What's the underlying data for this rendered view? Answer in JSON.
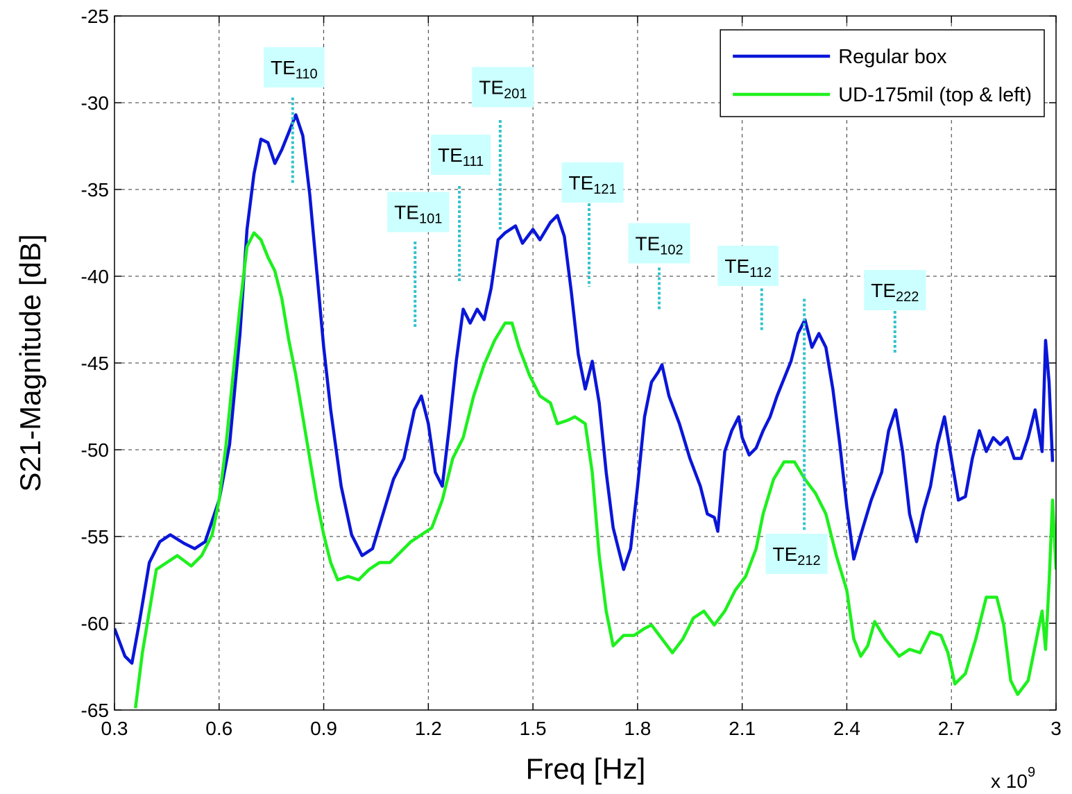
{
  "chart_data": {
    "type": "line",
    "xlabel": "Freq [Hz]",
    "ylabel": "S21-Magnitude [dB]",
    "x_multiplier": {
      "text": "x 10",
      "exponent": "9"
    },
    "xlim": [
      0.3,
      3
    ],
    "ylim": [
      -65,
      -25
    ],
    "xticks": [
      0.3,
      0.6,
      0.9,
      1.2,
      1.5,
      1.8,
      2.1,
      2.4,
      2.7,
      3
    ],
    "yticks": [
      -65,
      -60,
      -55,
      -50,
      -45,
      -40,
      -35,
      -30,
      -25
    ],
    "grid": true,
    "legend": "upper right",
    "series": [
      {
        "name": "Regular box",
        "color": "#0a16d8",
        "x": [
          0.3,
          0.33,
          0.35,
          0.37,
          0.4,
          0.43,
          0.46,
          0.5,
          0.53,
          0.56,
          0.6,
          0.63,
          0.66,
          0.68,
          0.7,
          0.72,
          0.74,
          0.76,
          0.78,
          0.8,
          0.82,
          0.84,
          0.86,
          0.88,
          0.9,
          0.92,
          0.95,
          0.98,
          1.01,
          1.04,
          1.07,
          1.1,
          1.13,
          1.16,
          1.18,
          1.2,
          1.22,
          1.24,
          1.26,
          1.28,
          1.3,
          1.32,
          1.34,
          1.36,
          1.38,
          1.4,
          1.42,
          1.45,
          1.47,
          1.5,
          1.52,
          1.55,
          1.57,
          1.59,
          1.61,
          1.63,
          1.65,
          1.67,
          1.69,
          1.71,
          1.73,
          1.76,
          1.78,
          1.8,
          1.82,
          1.84,
          1.86,
          1.87,
          1.89,
          1.92,
          1.95,
          1.98,
          2.0,
          2.02,
          2.03,
          2.05,
          2.07,
          2.09,
          2.1,
          2.12,
          2.14,
          2.16,
          2.18,
          2.2,
          2.22,
          2.24,
          2.26,
          2.28,
          2.3,
          2.32,
          2.34,
          2.36,
          2.38,
          2.4,
          2.42,
          2.44,
          2.47,
          2.5,
          2.52,
          2.54,
          2.56,
          2.58,
          2.6,
          2.62,
          2.64,
          2.66,
          2.68,
          2.7,
          2.72,
          2.74,
          2.76,
          2.78,
          2.8,
          2.82,
          2.84,
          2.86,
          2.88,
          2.9,
          2.92,
          2.94,
          2.96,
          2.97,
          2.98,
          2.99
        ],
        "values": [
          -60.3,
          -61.9,
          -62.3,
          -60.1,
          -56.5,
          -55.3,
          -54.9,
          -55.4,
          -55.7,
          -55.3,
          -52.9,
          -49.7,
          -43.3,
          -37.3,
          -34.1,
          -32.1,
          -32.3,
          -33.5,
          -32.7,
          -31.7,
          -30.7,
          -31.9,
          -35.3,
          -39.7,
          -44.1,
          -47.7,
          -52.1,
          -54.9,
          -56.1,
          -55.7,
          -53.7,
          -51.7,
          -50.5,
          -47.7,
          -46.9,
          -48.5,
          -51.3,
          -52.1,
          -48.7,
          -44.9,
          -41.9,
          -42.7,
          -41.9,
          -42.5,
          -40.7,
          -37.9,
          -37.5,
          -37.1,
          -38.1,
          -37.3,
          -37.9,
          -36.9,
          -36.5,
          -37.7,
          -40.9,
          -44.5,
          -46.5,
          -44.9,
          -47.3,
          -51.3,
          -54.5,
          -56.9,
          -55.7,
          -52.1,
          -48.1,
          -46.1,
          -45.5,
          -45.1,
          -46.9,
          -48.5,
          -50.5,
          -52.1,
          -53.7,
          -53.9,
          -54.7,
          -50.1,
          -48.9,
          -48.1,
          -49.3,
          -50.3,
          -49.9,
          -48.9,
          -48.1,
          -46.9,
          -45.9,
          -44.9,
          -43.3,
          -42.5,
          -44.1,
          -43.3,
          -44.1,
          -46.5,
          -49.7,
          -53.3,
          -56.3,
          -54.9,
          -52.9,
          -51.3,
          -48.9,
          -47.7,
          -50.1,
          -53.7,
          -55.3,
          -53.5,
          -52.1,
          -49.7,
          -48.1,
          -50.5,
          -52.9,
          -52.7,
          -50.5,
          -48.9,
          -50.1,
          -49.3,
          -49.7,
          -49.3,
          -50.5,
          -50.5,
          -49.3,
          -47.7,
          -50.1,
          -43.7,
          -46.1,
          -50.7
        ]
      },
      {
        "name": "UD-175mil (top & left)",
        "color": "#1ef01e",
        "x": [
          0.36,
          0.38,
          0.4,
          0.42,
          0.45,
          0.48,
          0.52,
          0.55,
          0.58,
          0.6,
          0.62,
          0.64,
          0.66,
          0.68,
          0.7,
          0.72,
          0.74,
          0.76,
          0.78,
          0.8,
          0.82,
          0.84,
          0.86,
          0.88,
          0.9,
          0.92,
          0.94,
          0.97,
          1.0,
          1.03,
          1.06,
          1.09,
          1.12,
          1.15,
          1.18,
          1.21,
          1.24,
          1.27,
          1.3,
          1.33,
          1.36,
          1.39,
          1.42,
          1.44,
          1.46,
          1.49,
          1.52,
          1.55,
          1.57,
          1.6,
          1.62,
          1.65,
          1.67,
          1.69,
          1.71,
          1.73,
          1.76,
          1.79,
          1.82,
          1.84,
          1.87,
          1.9,
          1.93,
          1.96,
          1.99,
          2.02,
          2.05,
          2.08,
          2.11,
          2.14,
          2.16,
          2.19,
          2.22,
          2.25,
          2.28,
          2.31,
          2.34,
          2.37,
          2.4,
          2.42,
          2.44,
          2.46,
          2.48,
          2.51,
          2.55,
          2.58,
          2.61,
          2.64,
          2.67,
          2.69,
          2.71,
          2.74,
          2.77,
          2.8,
          2.83,
          2.85,
          2.87,
          2.89,
          2.92,
          2.94,
          2.96,
          2.97,
          2.98,
          2.99,
          3.0
        ],
        "values": [
          -64.9,
          -61.7,
          -59.3,
          -56.9,
          -56.5,
          -56.1,
          -56.7,
          -56.1,
          -54.9,
          -52.9,
          -49.7,
          -45.7,
          -41.7,
          -38.3,
          -37.5,
          -37.9,
          -38.9,
          -39.7,
          -41.3,
          -43.7,
          -45.7,
          -48.1,
          -50.5,
          -52.9,
          -54.9,
          -56.5,
          -57.5,
          -57.3,
          -57.5,
          -56.9,
          -56.5,
          -56.5,
          -55.9,
          -55.3,
          -54.9,
          -54.5,
          -52.9,
          -50.5,
          -49.3,
          -46.9,
          -45.1,
          -43.7,
          -42.7,
          -42.7,
          -44.1,
          -45.7,
          -46.9,
          -47.3,
          -48.5,
          -48.3,
          -48.1,
          -48.5,
          -51.3,
          -56.1,
          -59.3,
          -61.3,
          -60.7,
          -60.7,
          -60.3,
          -60.1,
          -60.9,
          -61.7,
          -60.9,
          -59.7,
          -59.3,
          -60.1,
          -59.3,
          -58.1,
          -57.3,
          -55.7,
          -53.7,
          -51.7,
          -50.7,
          -50.7,
          -51.7,
          -52.5,
          -53.7,
          -56.1,
          -58.1,
          -60.9,
          -61.9,
          -61.3,
          -59.9,
          -60.9,
          -61.9,
          -61.5,
          -61.7,
          -60.5,
          -60.7,
          -61.7,
          -63.5,
          -62.9,
          -60.9,
          -58.5,
          -58.5,
          -60.1,
          -63.3,
          -64.1,
          -63.3,
          -61.3,
          -59.3,
          -61.5,
          -57.7,
          -52.9,
          -56.9
        ]
      }
    ],
    "annotations": [
      {
        "text": "TE",
        "sub": "110",
        "x": 0.811,
        "line": [
          -29.7,
          -34.7
        ],
        "label_x": 0.815,
        "label_y": -27.96
      },
      {
        "text": "TE",
        "sub": "201",
        "x": 1.406,
        "line": [
          -31.0,
          -37.3
        ],
        "label_x": 1.414,
        "label_y": -29.1
      },
      {
        "text": "TE",
        "sub": "111",
        "x": 1.289,
        "line": [
          -34.8,
          -40.3
        ],
        "label_x": 1.293,
        "label_y": -33.0
      },
      {
        "text": "TE",
        "sub": "121",
        "x": 1.661,
        "line": [
          -35.8,
          -40.6
        ],
        "label_x": 1.671,
        "label_y": -34.6
      },
      {
        "text": "TE",
        "sub": "101",
        "x": 1.162,
        "line": [
          -38.0,
          -43.0
        ],
        "label_x": 1.171,
        "label_y": -36.3
      },
      {
        "text": "TE",
        "sub": "102",
        "x": 1.862,
        "line": [
          -39.5,
          -41.9
        ],
        "label_x": 1.862,
        "label_y": -38.1
      },
      {
        "text": "TE",
        "sub": "112",
        "x": 2.156,
        "line": [
          -40.7,
          -43.2
        ],
        "label_x": 2.117,
        "label_y": -39.4
      },
      {
        "text": "TE",
        "sub": "222",
        "x": 2.538,
        "line": [
          -42.0,
          -44.5
        ],
        "label_x": 2.538,
        "label_y": -40.8
      },
      {
        "text": "TE",
        "sub": "212",
        "x": 2.278,
        "line": [
          -41.3,
          -54.7
        ],
        "label_x": 2.256,
        "label_y": -56.0
      }
    ]
  }
}
